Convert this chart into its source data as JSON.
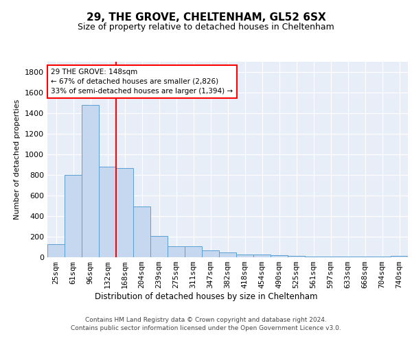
{
  "title1": "29, THE GROVE, CHELTENHAM, GL52 6SX",
  "title2": "Size of property relative to detached houses in Cheltenham",
  "xlabel": "Distribution of detached houses by size in Cheltenham",
  "ylabel": "Number of detached properties",
  "categories": [
    "25sqm",
    "61sqm",
    "96sqm",
    "132sqm",
    "168sqm",
    "204sqm",
    "239sqm",
    "275sqm",
    "311sqm",
    "347sqm",
    "382sqm",
    "418sqm",
    "454sqm",
    "490sqm",
    "525sqm",
    "561sqm",
    "597sqm",
    "633sqm",
    "668sqm",
    "704sqm",
    "740sqm"
  ],
  "values": [
    130,
    800,
    1480,
    880,
    870,
    495,
    205,
    110,
    110,
    70,
    50,
    30,
    30,
    20,
    15,
    10,
    5,
    5,
    5,
    5,
    15
  ],
  "bar_color": "#c5d8f0",
  "bar_edge_color": "#5a9fd4",
  "vline_x": 3.5,
  "vline_color": "red",
  "annotation_text": "29 THE GROVE: 148sqm\n← 67% of detached houses are smaller (2,826)\n33% of semi-detached houses are larger (1,394) →",
  "annotation_box_color": "white",
  "annotation_box_edge": "red",
  "footnote": "Contains HM Land Registry data © Crown copyright and database right 2024.\nContains public sector information licensed under the Open Government Licence v3.0.",
  "ylim": [
    0,
    1900
  ],
  "bg_color": "#e8eef8",
  "grid_color": "white",
  "title1_fontsize": 11,
  "title2_fontsize": 9,
  "yticks": [
    0,
    200,
    400,
    600,
    800,
    1000,
    1200,
    1400,
    1600,
    1800
  ]
}
